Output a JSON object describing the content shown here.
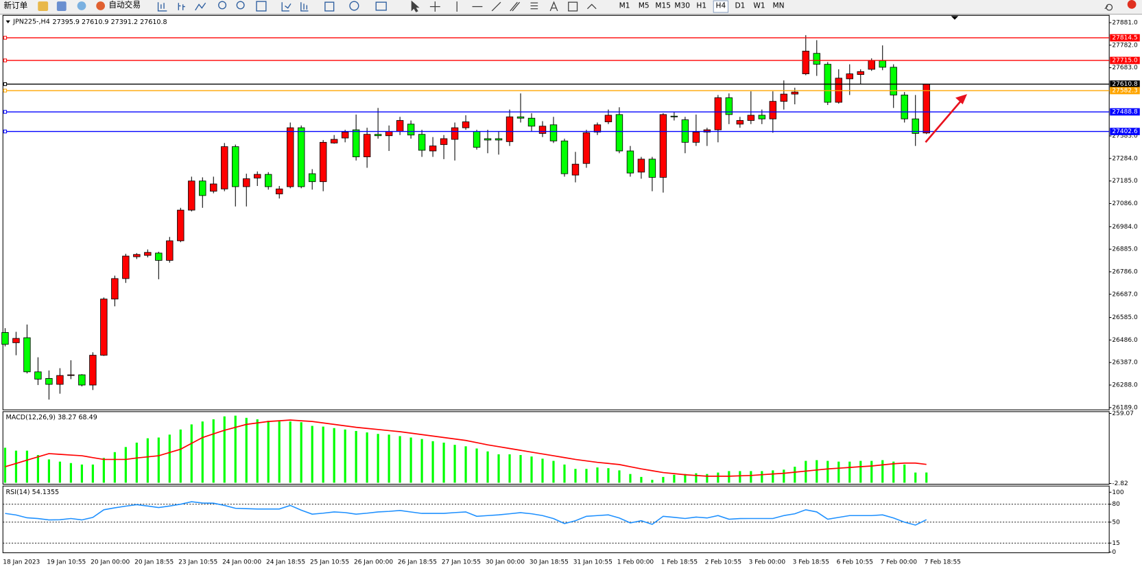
{
  "toolbar": {
    "new_order": "新订单",
    "auto_trading": "自动交易",
    "timeframes": [
      "M1",
      "M5",
      "M15",
      "M30",
      "H1",
      "H4",
      "D1",
      "W1",
      "MN"
    ]
  },
  "chart_data": [
    {
      "type": "candlestick",
      "title": "JPN225-,H4",
      "categories": [
        "18 Jan 2023",
        null,
        null,
        null,
        "19 Jan 10:55",
        null,
        null,
        null,
        "20 Jan 00:00",
        null,
        null,
        null,
        "20 Jan 18:55",
        null,
        null,
        null,
        "23 Jan 10:55",
        null,
        null,
        null,
        "24 Jan 00:00",
        null,
        null,
        null,
        "24 Jan 18:55",
        null,
        null,
        null,
        "25 Jan 10:55",
        null,
        null,
        null,
        "26 Jan 00:00",
        null,
        null,
        null,
        "26 Jan 18:55",
        null,
        null,
        null,
        "27 Jan 10:55",
        null,
        null,
        null,
        "30 Jan 00:00",
        null,
        null,
        null,
        "30 Jan 18:55",
        null,
        null,
        null,
        "31 Jan 10:55",
        null,
        null,
        null,
        "1 Feb 00:00",
        null,
        null,
        null,
        "1 Feb 18:55",
        null,
        null,
        null,
        "2 Feb 10:55",
        null,
        null,
        null,
        "3 Feb 00:00",
        null,
        null,
        null,
        "3 Feb 18:55",
        null,
        null,
        null,
        "6 Feb 10:55",
        null,
        null,
        null,
        "7 Feb 00:00",
        null,
        null,
        null,
        "7 Feb 18:55"
      ],
      "ohlc": [
        [
          26519,
          26538,
          26458,
          26467
        ],
        [
          26474,
          26522,
          26419,
          26493
        ],
        [
          26496,
          26554,
          26339,
          26346
        ],
        [
          26346,
          26410,
          26288,
          26314
        ],
        [
          26317,
          26352,
          26224,
          26291
        ],
        [
          26291,
          26362,
          26250,
          26330
        ],
        [
          26330,
          26397,
          26314,
          26333
        ],
        [
          26333,
          26336,
          26282,
          26288
        ],
        [
          26288,
          26432,
          26266,
          26419
        ],
        [
          26419,
          26673,
          26416,
          26666
        ],
        [
          26666,
          26769,
          26634,
          26756
        ],
        [
          26756,
          26865,
          26737,
          26855
        ],
        [
          26852,
          26868,
          26842,
          26862
        ],
        [
          26858,
          26884,
          26849,
          26871
        ],
        [
          26868,
          26874,
          26753,
          26836
        ],
        [
          26836,
          26939,
          26826,
          26922
        ],
        [
          26922,
          27067,
          26916,
          27057
        ],
        [
          27057,
          27204,
          27051,
          27185
        ],
        [
          27185,
          27201,
          27067,
          27121
        ],
        [
          27140,
          27204,
          27131,
          27172
        ],
        [
          27150,
          27352,
          27140,
          27336
        ],
        [
          27336,
          27345,
          27073,
          27160
        ],
        [
          27160,
          27217,
          27073,
          27195
        ],
        [
          27198,
          27227,
          27163,
          27214
        ],
        [
          27214,
          27224,
          27147,
          27160
        ],
        [
          27128,
          27163,
          27108,
          27150
        ],
        [
          27160,
          27442,
          27153,
          27419
        ],
        [
          27419,
          27429,
          27153,
          27160
        ],
        [
          27217,
          27237,
          27147,
          27182
        ],
        [
          27182,
          27365,
          27140,
          27355
        ],
        [
          27352,
          27387,
          27349,
          27368
        ],
        [
          27374,
          27410,
          27355,
          27400
        ],
        [
          27410,
          27477,
          27275,
          27291
        ],
        [
          27291,
          27419,
          27243,
          27390
        ],
        [
          27390,
          27506,
          27371,
          27384
        ],
        [
          27384,
          27429,
          27317,
          27403
        ],
        [
          27403,
          27467,
          27387,
          27451
        ],
        [
          27435,
          27451,
          27371,
          27387
        ],
        [
          27390,
          27410,
          27291,
          27320
        ],
        [
          27317,
          27378,
          27291,
          27339
        ],
        [
          27345,
          27387,
          27281,
          27371
        ],
        [
          27368,
          27442,
          27275,
          27419
        ],
        [
          27419,
          27474,
          27410,
          27445
        ],
        [
          27403,
          27410,
          27323,
          27333
        ],
        [
          27371,
          27410,
          27307,
          27365
        ],
        [
          27371,
          27403,
          27301,
          27365
        ],
        [
          27358,
          27499,
          27339,
          27467
        ],
        [
          27467,
          27570,
          27442,
          27461
        ],
        [
          27461,
          27483,
          27403,
          27426
        ],
        [
          27394,
          27448,
          27378,
          27426
        ],
        [
          27432,
          27467,
          27352,
          27361
        ],
        [
          27361,
          27371,
          27204,
          27217
        ],
        [
          27211,
          27313,
          27179,
          27259
        ],
        [
          27262,
          27410,
          27243,
          27397
        ],
        [
          27400,
          27442,
          27387,
          27432
        ],
        [
          27445,
          27499,
          27435,
          27474
        ],
        [
          27477,
          27509,
          27307,
          27317
        ],
        [
          27317,
          27339,
          27204,
          27220
        ],
        [
          27224,
          27291,
          27195,
          27281
        ],
        [
          27281,
          27291,
          27140,
          27201
        ],
        [
          27201,
          27483,
          27134,
          27477
        ],
        [
          27470,
          27490,
          27451,
          27467
        ],
        [
          27454,
          27467,
          27307,
          27355
        ],
        [
          27355,
          27477,
          27339,
          27400
        ],
        [
          27400,
          27419,
          27339,
          27410
        ],
        [
          27410,
          27563,
          27355,
          27551
        ],
        [
          27551,
          27570,
          27435,
          27477
        ],
        [
          27435,
          27467,
          27419,
          27451
        ],
        [
          27451,
          27579,
          27435,
          27474
        ],
        [
          27474,
          27499,
          27435,
          27458
        ],
        [
          27458,
          27579,
          27397,
          27535
        ],
        [
          27535,
          27627,
          27499,
          27567
        ],
        [
          27567,
          27595,
          27522,
          27576
        ],
        [
          27656,
          27826,
          27650,
          27756
        ],
        [
          27746,
          27804,
          27647,
          27698
        ],
        [
          27698,
          27708,
          27519,
          27531
        ],
        [
          27531,
          27676,
          27525,
          27637
        ],
        [
          27634,
          27698,
          27563,
          27656
        ],
        [
          27653,
          27676,
          27611,
          27666
        ],
        [
          27676,
          27724,
          27669,
          27714
        ],
        [
          27714,
          27781,
          27672,
          27685
        ],
        [
          27685,
          27698,
          27506,
          27563
        ],
        [
          27563,
          27576,
          27442,
          27458
        ],
        [
          27458,
          27563,
          27339,
          27394
        ],
        [
          27395.9,
          27610.9,
          27391.2,
          27610.8
        ]
      ],
      "up_color": "#ff0000",
      "down_color": "#00ff00",
      "ylim": [
        26179,
        27910
      ],
      "yticks": [
        {
          "value": 27881,
          "label": "27881.0"
        },
        {
          "value": 27782,
          "label": "27782.0"
        },
        {
          "value": 27683,
          "label": "27683.0"
        },
        {
          "value": 27383,
          "label": "27383.0"
        },
        {
          "value": 27284,
          "label": "27284.0"
        },
        {
          "value": 27185,
          "label": "27185.0"
        },
        {
          "value": 27086,
          "label": "27086.0"
        },
        {
          "value": 26984,
          "label": "26984.0"
        },
        {
          "value": 26885,
          "label": "26885.0"
        },
        {
          "value": 26786,
          "label": "26786.0"
        },
        {
          "value": 26687,
          "label": "26687.0"
        },
        {
          "value": 26585,
          "label": "26585.0"
        },
        {
          "value": 26486,
          "label": "26486.0"
        },
        {
          "value": 26387,
          "label": "26387.0"
        },
        {
          "value": 26288,
          "label": "26288.0"
        },
        {
          "value": 26189,
          "label": "26189.0"
        }
      ],
      "price_lines": [
        {
          "value": 27814.5,
          "color": "#ff0000"
        },
        {
          "value": 27715,
          "label": "27715.0",
          "color": "#ff0000"
        },
        {
          "value": 27610.8,
          "color": "#000000"
        },
        {
          "value": 27582.3,
          "color": "#ffa500"
        },
        {
          "value": 27488.8,
          "color": "#0000ff"
        },
        {
          "value": 27402.6,
          "color": "#0000ff"
        }
      ]
    },
    {
      "type": "macd",
      "title": "MACD(12,26,9)",
      "series": [
        {
          "type": "bar",
          "color": "#00ff00",
          "values": [
            130.9,
            120.0,
            120.0,
            103.6,
            87.2,
            79.0,
            73.6,
            68.1,
            68.1,
            92.7,
            114.5,
            133.6,
            150.0,
            166.3,
            169.1,
            180.0,
            199.1,
            218.2,
            229.1,
            237.3,
            248.2,
            250.9,
            242.7,
            237.3,
            231.8,
            229.1,
            229.1,
            226.4,
            212.7,
            210.0,
            204.5,
            199.1,
            193.6,
            188.2,
            182.7,
            180.0,
            174.5,
            169.1,
            163.6,
            155.4,
            150.0,
            141.8,
            136.3,
            128.1,
            117.2,
            106.3,
            106.3,
            103.6,
            98.1,
            90.0,
            81.8,
            68.1,
            51.8,
            51.8,
            57.2,
            54.5,
            46.3,
            32.7,
            21.8,
            10.8,
            21.8,
            29.9,
            32.7,
            35.4,
            32.7,
            38.1,
            43.6,
            43.6,
            43.6,
            43.6,
            46.3,
            49.0,
            59.9,
            81.8,
            84.5,
            81.8,
            79.0,
            79.0,
            81.8,
            81.8,
            84.5,
            79.0,
            68.1,
            38.1,
            38.27
          ]
        },
        {
          "type": "line",
          "color": "#ff0000",
          "values": [
            59.9,
            72.2,
            84.5,
            96.7,
            109.0,
            106.3,
            103.6,
            100.9,
            94.0,
            87.2,
            87.2,
            87.2,
            92.7,
            96.8,
            100.9,
            113.2,
            125.4,
            147.3,
            169.1,
            182.7,
            196.3,
            207.3,
            218.2,
            223.7,
            229.1,
            231.8,
            234.5,
            231.8,
            229.1,
            223.7,
            218.2,
            212.8,
            207.3,
            203.2,
            199.1,
            195.0,
            190.9,
            185.5,
            180.0,
            174.6,
            169.1,
            163.7,
            158.2,
            150.0,
            141.8,
            135.0,
            128.1,
            121.3,
            114.5,
            107.7,
            100.9,
            94.1,
            87.2,
            81.8,
            76.3,
            72.2,
            68.1,
            60.0,
            51.8,
            45.0,
            38.1,
            34.0,
            29.9,
            27.2,
            24.5,
            24.5,
            24.5,
            25.9,
            27.2,
            30.0,
            32.7,
            35.4,
            39.5,
            43.6,
            47.7,
            51.8,
            54.5,
            57.2,
            60.0,
            62.7,
            66.8,
            70.9,
            73.6,
            73.6,
            68.49
          ]
        }
      ],
      "ylim": [
        -5.5,
        264.5
      ],
      "yticks": [
        259.07,
        -2.82
      ]
    },
    {
      "type": "rsi",
      "title": "RSI(14)",
      "series": [
        {
          "color": "#1e90ff",
          "values": [
            64.6,
            62,
            57.3,
            56,
            53.7,
            54,
            56.1,
            53.7,
            58,
            70.7,
            74,
            76.8,
            79.3,
            77,
            74.4,
            77,
            80,
            84.1,
            82,
            81.7,
            78,
            73.2,
            72.5,
            72.0,
            72,
            72,
            78.0,
            70,
            63.4,
            65,
            67.1,
            66,
            63.4,
            65,
            67.1,
            68,
            69.5,
            67,
            64.6,
            64.6,
            64.6,
            66,
            67.1,
            59.8,
            61,
            62.2,
            64,
            65.9,
            64,
            61.0,
            56,
            47.6,
            52.4,
            59.8,
            61,
            62.2,
            57,
            48.8,
            52.4,
            46.3,
            59.8,
            58,
            56.1,
            58.5,
            57,
            61.0,
            54.9,
            56,
            56.1,
            56.1,
            56.1,
            61.0,
            64,
            70.7,
            67.1,
            54.9,
            58,
            61.0,
            61,
            61.0,
            62.2,
            57,
            50.0,
            45.1,
            54.1355
          ]
        }
      ],
      "ylim": [
        -1.2,
        109.8
      ],
      "yticks": [
        100,
        80,
        50,
        15,
        0
      ],
      "levels": [
        80,
        50,
        15
      ]
    }
  ]
}
